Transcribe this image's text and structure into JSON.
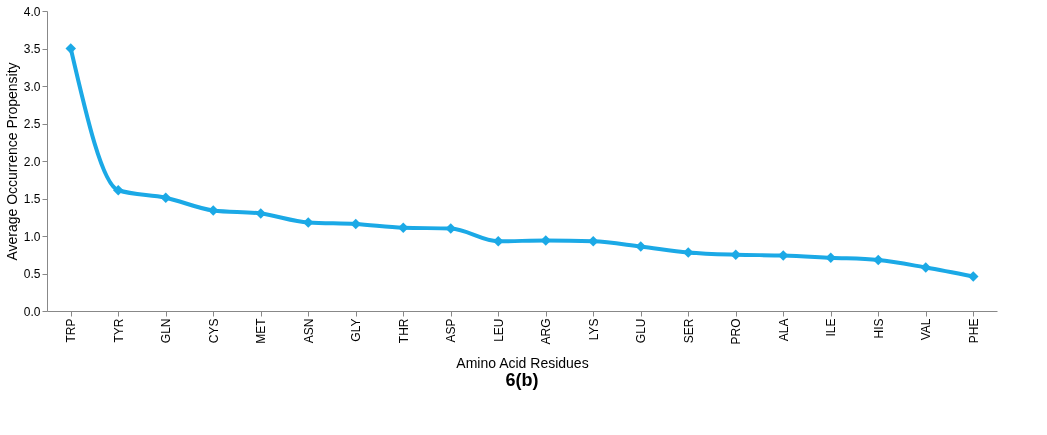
{
  "chart_data": {
    "type": "line",
    "xlabel": "Amino Acid Residues",
    "ylabel": "Average Occurrence Propensity",
    "annotations": [
      "6(b)"
    ],
    "categories": [
      "TRP",
      "TYR",
      "GLN",
      "CYS",
      "MET",
      "ASN",
      "GLY",
      "THR",
      "ASP",
      "LEU",
      "ARG",
      "LYS",
      "GLU",
      "SER",
      "PRO",
      "ALA",
      "ILE",
      "HIS",
      "VAL",
      "PHE"
    ],
    "series": [
      {
        "color": "#1ba9e6",
        "values": [
          3.5,
          1.61,
          1.51,
          1.34,
          1.3,
          1.18,
          1.16,
          1.11,
          1.1,
          0.93,
          0.94,
          0.93,
          0.86,
          0.78,
          0.75,
          0.74,
          0.71,
          0.68,
          0.58,
          0.46
        ]
      }
    ],
    "ylim": [
      0,
      4.0
    ],
    "yticks": [
      {
        "value": 0,
        "label": "0.0"
      },
      {
        "value": 0.5,
        "label": "0.5"
      },
      {
        "value": 1,
        "label": "1.0"
      },
      {
        "value": 1.5,
        "label": "1.5"
      },
      {
        "value": 2,
        "label": "2.0"
      },
      {
        "value": 2.5,
        "label": "2.5"
      },
      {
        "value": 3,
        "label": "3.0"
      },
      {
        "value": 3.5,
        "label": "3.5"
      },
      {
        "value": 4,
        "label": "4.0"
      }
    ],
    "grid": false,
    "marker": "diamond",
    "line_style": "solid"
  }
}
